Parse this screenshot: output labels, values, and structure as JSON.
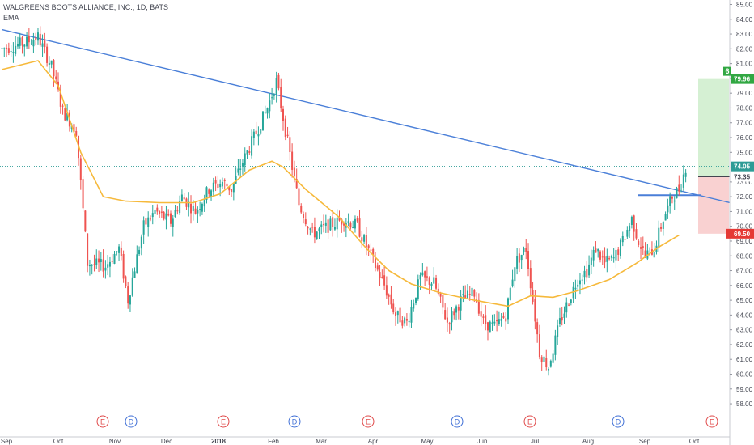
{
  "header": {
    "title": "WALGREENS BOOTS ALLIANCE, INC., 1D, BATS",
    "indicator": "EMA"
  },
  "colors": {
    "up": "#26a69a",
    "down": "#ef5350",
    "ema": "#f6b93b",
    "trendline": "#4a7fd8",
    "profit_zone": "#d5f0d3",
    "loss_zone": "#f9d1d1",
    "target_badge": "#31a742",
    "stop_badge": "#e53935",
    "last_price_badge": "#2e9c96",
    "entry_badge": "#434651"
  },
  "chart_data": {
    "type": "candlestick",
    "title": "WALGREENS BOOTS ALLIANCE, INC., 1D, BATS",
    "indicator": "EMA",
    "ylim": [
      57.5,
      85.3
    ],
    "y_ticks": [
      "58.00",
      "59.00",
      "60.00",
      "61.00",
      "62.00",
      "63.00",
      "64.00",
      "65.00",
      "66.00",
      "67.00",
      "68.00",
      "69.00",
      "70.00",
      "71.00",
      "72.00",
      "73.00",
      "74.00",
      "75.00",
      "76.00",
      "77.00",
      "78.00",
      "79.00",
      "80.00",
      "81.00",
      "82.00",
      "83.00",
      "84.00",
      "85.00"
    ],
    "x_ticks": [
      "Sep",
      "Oct",
      "Nov",
      "Dec",
      "2018",
      "Feb",
      "Mar",
      "Apr",
      "May",
      "Jun",
      "Jul",
      "Aug",
      "Sep",
      "Oct"
    ],
    "grid": false,
    "price_path": {
      "start_index": 0,
      "end_index": 282,
      "keypoints": [
        [
          0,
          82.0
        ],
        [
          10,
          82.4
        ],
        [
          16,
          82.8
        ],
        [
          22,
          80.8
        ],
        [
          27,
          77.8
        ],
        [
          33,
          76.5
        ],
        [
          38,
          67.5
        ],
        [
          46,
          67.3
        ],
        [
          52,
          68.5
        ],
        [
          56,
          65.0
        ],
        [
          58,
          66.5
        ],
        [
          63,
          70.0
        ],
        [
          68,
          71.0
        ],
        [
          75,
          70.3
        ],
        [
          80,
          72.0
        ],
        [
          86,
          71.0
        ],
        [
          92,
          72.5
        ],
        [
          98,
          73.0
        ],
        [
          102,
          72.5
        ],
        [
          106,
          74.0
        ],
        [
          112,
          76.0
        ],
        [
          118,
          78.0
        ],
        [
          122,
          79.8
        ],
        [
          126,
          76.5
        ],
        [
          132,
          71.5
        ],
        [
          138,
          69.5
        ],
        [
          145,
          70.0
        ],
        [
          152,
          70.5
        ],
        [
          158,
          70.0
        ],
        [
          164,
          68.0
        ],
        [
          170,
          66.0
        ],
        [
          175,
          64.0
        ],
        [
          180,
          63.5
        ],
        [
          186,
          66.5
        ],
        [
          192,
          66.2
        ],
        [
          198,
          63.5
        ],
        [
          204,
          65.0
        ],
        [
          210,
          65.5
        ],
        [
          214,
          63.5
        ],
        [
          219,
          63.2
        ],
        [
          224,
          64.0
        ],
        [
          228,
          67.5
        ],
        [
          233,
          68.5
        ],
        [
          239,
          61.5
        ],
        [
          243,
          60.5
        ],
        [
          248,
          63.5
        ],
        [
          252,
          65.0
        ],
        [
          256,
          66.5
        ],
        [
          260,
          67.0
        ],
        [
          264,
          68.5
        ],
        [
          268,
          67.5
        ],
        [
          272,
          67.8
        ],
        [
          276,
          69.0
        ],
        [
          280,
          70.5
        ],
        [
          283,
          69.0
        ],
        [
          286,
          68.0
        ],
        [
          290,
          68.5
        ],
        [
          294,
          70.5
        ],
        [
          298,
          72.0
        ],
        [
          301,
          72.5
        ],
        [
          304,
          74.0
        ]
      ],
      "extra_keypoints_note": ""
    },
    "ema_path": [
      [
        0,
        80.6
      ],
      [
        16,
        81.2
      ],
      [
        25,
        79.5
      ],
      [
        35,
        75.0
      ],
      [
        45,
        72.0
      ],
      [
        55,
        71.7
      ],
      [
        70,
        71.6
      ],
      [
        85,
        71.6
      ],
      [
        97,
        72.2
      ],
      [
        110,
        73.8
      ],
      [
        120,
        74.4
      ],
      [
        125,
        74.0
      ],
      [
        135,
        72.5
      ],
      [
        150,
        70.6
      ],
      [
        162,
        68.5
      ],
      [
        172,
        67.0
      ],
      [
        182,
        66.1
      ],
      [
        195,
        65.5
      ],
      [
        210,
        65.0
      ],
      [
        225,
        64.6
      ],
      [
        235,
        65.3
      ],
      [
        245,
        65.2
      ],
      [
        255,
        65.6
      ],
      [
        270,
        66.4
      ],
      [
        282,
        67.5
      ],
      [
        292,
        68.6
      ],
      [
        301,
        69.4
      ]
    ],
    "trendline": {
      "from": [
        0,
        83.3
      ],
      "to": [
        307,
        72.2
      ]
    },
    "horizontal_segment": {
      "from": [
        279,
        72.1
      ],
      "to": [
        302,
        72.1
      ]
    },
    "position": {
      "target": 79.96,
      "entry": 73.35,
      "stop": 69.5,
      "target_label": "79.96",
      "entry_label": "73.35",
      "stop_label": "69.50",
      "badge_number": "6"
    },
    "last_price": {
      "value": 74.05,
      "label": "74.05"
    },
    "events": [
      {
        "label": "E",
        "kind": "earnings",
        "index": 43
      },
      {
        "label": "D",
        "kind": "dividend",
        "index": 57
      },
      {
        "label": "E",
        "kind": "earnings",
        "index": 98
      },
      {
        "label": "D",
        "kind": "dividend",
        "index": 130
      },
      {
        "label": "E",
        "kind": "earnings",
        "index": 162
      },
      {
        "label": "D",
        "kind": "dividend",
        "index": 201
      },
      {
        "label": "E",
        "kind": "earnings",
        "index": 234
      },
      {
        "label": "D",
        "kind": "dividend",
        "index": 274
      },
      {
        "label": "E",
        "kind": "earnings",
        "index": 317
      }
    ]
  }
}
